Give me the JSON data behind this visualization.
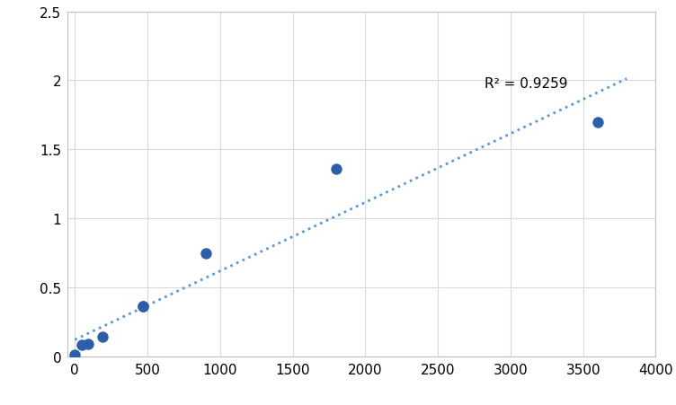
{
  "x": [
    0,
    47,
    94,
    188,
    469,
    469,
    900,
    1800,
    3600
  ],
  "y": [
    0.01,
    0.08,
    0.09,
    0.14,
    0.36,
    0.36,
    0.75,
    1.36,
    1.7
  ],
  "scatter_color": "#2E5EA8",
  "scatter_size": 80,
  "trendline_color": "#5B9BD5",
  "r_squared": "R² = 0.9259",
  "r_squared_x": 2820,
  "r_squared_y": 2.03,
  "xlim": [
    -50,
    4000
  ],
  "ylim": [
    0,
    2.5
  ],
  "xticks": [
    0,
    500,
    1000,
    1500,
    2000,
    2500,
    3000,
    3500,
    4000
  ],
  "yticks": [
    0,
    0.5,
    1.0,
    1.5,
    2.0,
    2.5
  ],
  "grid_color": "#D9D9D9",
  "bg_color": "#FFFFFF",
  "plot_bg_color": "#FFFFFF",
  "tick_label_fontsize": 11,
  "annotation_fontsize": 11,
  "spine_color": "#C0C0C0"
}
